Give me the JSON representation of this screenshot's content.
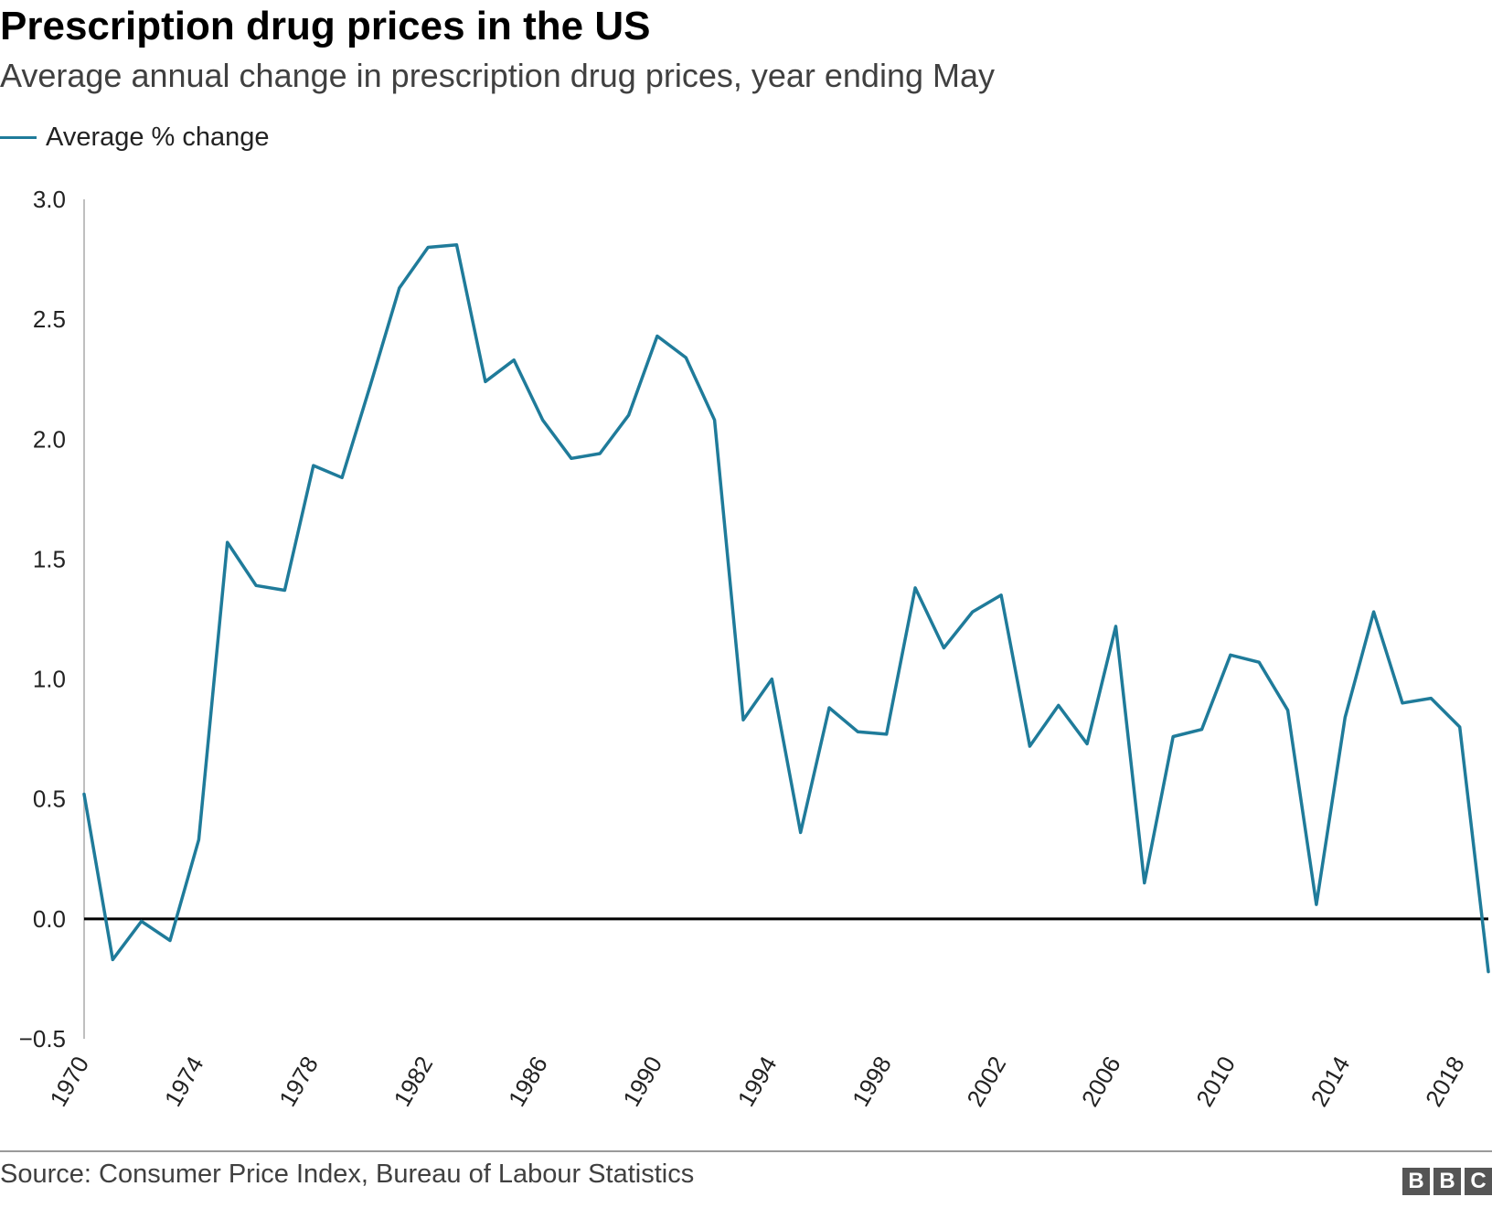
{
  "header": {
    "title": "Prescription drug prices in the US",
    "subtitle": "Average annual change in prescription drug prices, year ending May"
  },
  "legend": {
    "label": "Average % change"
  },
  "footer": {
    "source": "Source: Consumer Price Index, Bureau of Labour Statistics",
    "logo_letters": [
      "B",
      "B",
      "C"
    ]
  },
  "colors": {
    "series": "#1f7b9a",
    "zero_line": "#000000",
    "axis": "#bfbfbf"
  },
  "chart_data": {
    "type": "line",
    "title": "Prescription drug prices in the US",
    "subtitle": "Average annual change in prescription drug prices, year ending May",
    "xlabel": "",
    "ylabel": "",
    "xlim": [
      1970,
      2019
    ],
    "ylim": [
      -0.5,
      3.0
    ],
    "y_ticks": [
      3.0,
      2.5,
      2.0,
      1.5,
      1.0,
      0.5,
      0.0,
      -0.5
    ],
    "y_tick_labels": [
      "3.0",
      "2.5",
      "2.0",
      "1.5",
      "1.0",
      "0.5",
      "0.0",
      "−0.5"
    ],
    "x_ticks": [
      1970,
      1974,
      1978,
      1982,
      1986,
      1990,
      1994,
      1998,
      2002,
      2006,
      2010,
      2014,
      2018
    ],
    "x_tick_labels": [
      "1970",
      "1974",
      "1978",
      "1982",
      "1986",
      "1990",
      "1994",
      "1998",
      "2002",
      "2006",
      "2010",
      "2014",
      "2018"
    ],
    "grid": false,
    "legend_position": "top-left",
    "series": [
      {
        "name": "Average % change",
        "x": [
          1970,
          1971,
          1972,
          1973,
          1974,
          1975,
          1976,
          1977,
          1978,
          1979,
          1980,
          1981,
          1982,
          1983,
          1984,
          1985,
          1986,
          1987,
          1988,
          1989,
          1990,
          1991,
          1992,
          1993,
          1994,
          1995,
          1996,
          1997,
          1998,
          1999,
          2000,
          2001,
          2002,
          2003,
          2004,
          2005,
          2006,
          2007,
          2008,
          2009,
          2010,
          2011,
          2012,
          2013,
          2014,
          2015,
          2016,
          2017,
          2018,
          2019
        ],
        "values": [
          0.52,
          -0.17,
          -0.01,
          -0.09,
          0.33,
          1.57,
          1.39,
          1.37,
          1.89,
          1.84,
          2.23,
          2.63,
          2.8,
          2.81,
          2.24,
          2.33,
          2.08,
          1.92,
          1.94,
          2.1,
          2.43,
          2.34,
          2.08,
          0.83,
          1.0,
          0.36,
          0.88,
          0.78,
          0.77,
          1.38,
          1.13,
          1.28,
          1.35,
          0.72,
          0.89,
          0.73,
          1.22,
          0.15,
          0.76,
          0.79,
          1.1,
          1.07,
          0.87,
          0.06,
          0.84,
          1.28,
          0.9,
          0.92,
          0.8,
          -0.22
        ]
      }
    ]
  }
}
